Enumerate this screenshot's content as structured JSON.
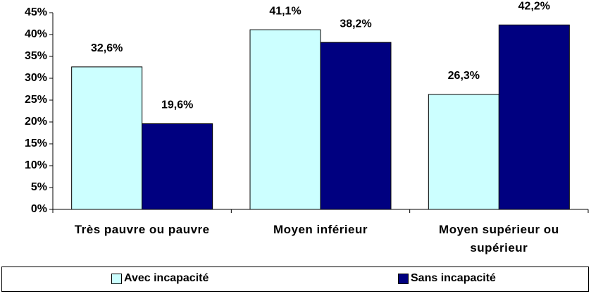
{
  "chart_data": {
    "type": "bar",
    "categories": [
      "Très pauvre ou pauvre",
      "Moyen inférieur",
      "Moyen supérieur ou supérieur"
    ],
    "series": [
      {
        "name": "Avec incapacité",
        "color": "#ccffff",
        "values": [
          32.6,
          41.1,
          26.3
        ],
        "value_labels": [
          "32,6%",
          "41,1%",
          "26,3%"
        ]
      },
      {
        "name": "Sans incapacité",
        "color": "#000080",
        "values": [
          19.6,
          38.2,
          42.2
        ],
        "value_labels": [
          "19,6%",
          "38,2%",
          "42,2%"
        ]
      }
    ],
    "ylim": [
      0,
      45
    ],
    "yticks": [
      {
        "value": 0,
        "label": "0%"
      },
      {
        "value": 5,
        "label": "5%"
      },
      {
        "value": 10,
        "label": "10%"
      },
      {
        "value": 15,
        "label": "15%"
      },
      {
        "value": 20,
        "label": "20%"
      },
      {
        "value": 25,
        "label": "25%"
      },
      {
        "value": 30,
        "label": "30%"
      },
      {
        "value": 35,
        "label": "35%"
      },
      {
        "value": 40,
        "label": "40%"
      },
      {
        "value": 45,
        "label": "45%"
      }
    ],
    "grid": false,
    "legend": "bottom"
  }
}
